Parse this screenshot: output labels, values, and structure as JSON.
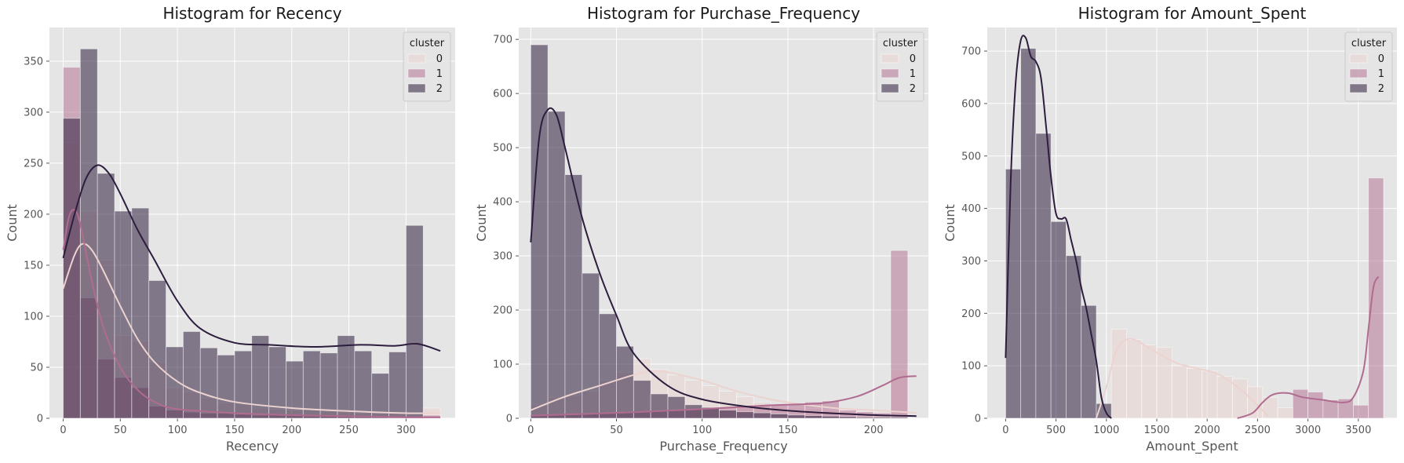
{
  "colors": {
    "cluster0": "#ecd3d0",
    "cluster1": "#b06c8f",
    "cluster2": "#2d1e3e",
    "panel_bg": "#e5e5e5",
    "grid": "#ffffff"
  },
  "legend": {
    "title": "cluster",
    "labels": [
      "0",
      "1",
      "2"
    ],
    "placement": "top-right"
  },
  "chart_data": [
    {
      "type": "bar",
      "title": "Histogram for Recency",
      "xlabel": "Recency",
      "ylabel": "Count",
      "xlim": [
        -12,
        343
      ],
      "ylim": [
        0,
        383
      ],
      "xticks": [
        0,
        50,
        100,
        150,
        200,
        250,
        300
      ],
      "yticks": [
        0,
        50,
        100,
        150,
        200,
        250,
        300,
        350
      ],
      "bin_start": 0,
      "bin_width": 15,
      "grid": true,
      "series": [
        {
          "name": "0",
          "values": [
            270,
            203,
            155,
            81,
            76,
            55,
            30,
            26,
            20,
            15,
            14,
            10,
            9,
            8,
            8,
            7,
            6,
            5,
            5,
            5,
            4,
            10
          ]
        },
        {
          "name": "1",
          "values": [
            344,
            118,
            58,
            40,
            30,
            12,
            8,
            6,
            5,
            5,
            4,
            3,
            3,
            3,
            2,
            2,
            2,
            2,
            1,
            1,
            1,
            3
          ]
        },
        {
          "name": "2",
          "values": [
            294,
            362,
            240,
            203,
            206,
            135,
            70,
            85,
            69,
            62,
            66,
            81,
            70,
            56,
            66,
            64,
            81,
            66,
            44,
            65,
            189,
            0
          ]
        }
      ],
      "kde": [
        {
          "name": "0",
          "x": [
            0,
            10,
            17,
            25,
            35,
            50,
            65,
            80,
            100,
            120,
            150,
            200,
            250,
            300,
            330
          ],
          "y": [
            127,
            160,
            171,
            165,
            145,
            110,
            78,
            55,
            36,
            25,
            16,
            10,
            7,
            5,
            5
          ]
        },
        {
          "name": "1",
          "x": [
            0,
            5,
            10,
            15,
            25,
            35,
            50,
            65,
            80,
            100,
            150,
            200,
            250,
            300,
            330
          ],
          "y": [
            165,
            197,
            204,
            190,
            135,
            90,
            50,
            28,
            16,
            9,
            5,
            3,
            2,
            1,
            1
          ]
        },
        {
          "name": "2",
          "x": [
            0,
            10,
            20,
            30,
            40,
            50,
            65,
            80,
            100,
            120,
            150,
            180,
            220,
            260,
            290,
            310,
            330
          ],
          "y": [
            157,
            200,
            235,
            248,
            240,
            220,
            185,
            155,
            115,
            88,
            74,
            72,
            70,
            72,
            71,
            73,
            66
          ]
        }
      ]
    },
    {
      "type": "bar",
      "title": "Histogram for Purchase_Frequency",
      "xlabel": "Purchase_Frequency",
      "ylabel": "Count",
      "xlim": [
        -7,
        232
      ],
      "ylim": [
        0,
        722
      ],
      "xticks": [
        0,
        50,
        100,
        150,
        200
      ],
      "yticks": [
        0,
        100,
        200,
        300,
        400,
        500,
        600,
        700
      ],
      "bin_start": 0,
      "bin_width": 10,
      "grid": true,
      "series": [
        {
          "name": "0",
          "values": [
            25,
            38,
            42,
            50,
            70,
            85,
            110,
            90,
            80,
            70,
            60,
            50,
            40,
            30,
            25,
            20,
            18,
            15,
            12,
            10,
            8,
            90,
            0
          ]
        },
        {
          "name": "1",
          "values": [
            5,
            6,
            7,
            8,
            10,
            12,
            14,
            15,
            16,
            17,
            18,
            20,
            22,
            24,
            25,
            27,
            30,
            32,
            15,
            12,
            10,
            310,
            0
          ]
        },
        {
          "name": "2",
          "values": [
            690,
            567,
            450,
            268,
            193,
            133,
            70,
            45,
            40,
            25,
            20,
            15,
            12,
            10,
            8,
            6,
            5,
            4,
            3,
            2,
            2,
            2,
            0
          ]
        }
      ],
      "kde": [
        {
          "name": "0",
          "x": [
            0,
            20,
            40,
            60,
            70,
            80,
            100,
            120,
            140,
            160,
            180,
            200,
            225
          ],
          "y": [
            15,
            40,
            60,
            80,
            87,
            85,
            70,
            50,
            35,
            25,
            18,
            15,
            10
          ]
        },
        {
          "name": "1",
          "x": [
            0,
            50,
            100,
            140,
            170,
            190,
            205,
            215,
            225
          ],
          "y": [
            5,
            10,
            17,
            24,
            28,
            40,
            60,
            75,
            78
          ]
        },
        {
          "name": "2",
          "x": [
            0,
            5,
            10,
            15,
            20,
            30,
            40,
            50,
            60,
            80,
            100,
            130,
            160,
            200,
            225
          ],
          "y": [
            325,
            520,
            570,
            560,
            500,
            370,
            270,
            190,
            120,
            60,
            35,
            20,
            12,
            6,
            4
          ]
        }
      ]
    },
    {
      "type": "bar",
      "title": "Histogram for Amount_Spent",
      "xlabel": "Amount_Spent",
      "ylabel": "Count",
      "xlim": [
        -182,
        3883
      ],
      "ylim": [
        0,
        745
      ],
      "xticks": [
        0,
        500,
        1000,
        1500,
        2000,
        2500,
        3000,
        3500
      ],
      "yticks": [
        0,
        100,
        200,
        300,
        400,
        500,
        600,
        700
      ],
      "bin_start": 0,
      "bin_width": 150,
      "grid": true,
      "series": [
        {
          "name": "0",
          "values": [
            0,
            0,
            0,
            0,
            0,
            0,
            0,
            170,
            150,
            140,
            135,
            100,
            95,
            90,
            80,
            75,
            60,
            40,
            20,
            0,
            0,
            0,
            0,
            0,
            0
          ]
        },
        {
          "name": "1",
          "values": [
            0,
            0,
            0,
            0,
            0,
            0,
            0,
            0,
            0,
            0,
            0,
            0,
            0,
            0,
            0,
            0,
            0,
            0,
            0,
            55,
            50,
            35,
            37,
            25,
            458
          ]
        },
        {
          "name": "2",
          "values": [
            475,
            705,
            543,
            375,
            310,
            215,
            28,
            0,
            0,
            0,
            0,
            0,
            0,
            0,
            0,
            0,
            0,
            0,
            0,
            0,
            0,
            0,
            0,
            0,
            0
          ]
        }
      ],
      "kde": [
        {
          "name": "0",
          "x": [
            900,
            1000,
            1100,
            1200,
            1300,
            1500,
            1700,
            1900,
            2100,
            2300,
            2500,
            2600
          ],
          "y": [
            0,
            60,
            130,
            150,
            148,
            125,
            105,
            95,
            85,
            60,
            25,
            5
          ]
        },
        {
          "name": "1",
          "x": [
            2300,
            2450,
            2550,
            2650,
            2800,
            2950,
            3150,
            3350,
            3450,
            3550,
            3600,
            3650,
            3700
          ],
          "y": [
            0,
            10,
            30,
            45,
            48,
            40,
            35,
            30,
            40,
            90,
            170,
            250,
            270
          ]
        },
        {
          "name": "2",
          "x": [
            0,
            50,
            100,
            150,
            200,
            250,
            300,
            350,
            400,
            450,
            500,
            550,
            600,
            650,
            700,
            750,
            800,
            850,
            900,
            950,
            1000,
            1050
          ],
          "y": [
            115,
            450,
            640,
            720,
            725,
            690,
            680,
            650,
            560,
            460,
            390,
            380,
            380,
            340,
            300,
            250,
            210,
            160,
            110,
            40,
            10,
            0
          ]
        }
      ]
    }
  ]
}
